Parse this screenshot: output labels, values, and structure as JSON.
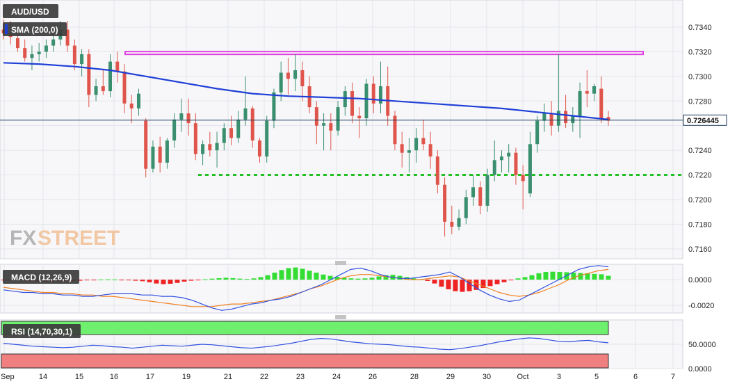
{
  "branding": {
    "logo_left": "FX",
    "logo_right": "STREET"
  },
  "price_panel": {
    "symbol_label": "AUD/USD",
    "sma_label": "SMA (200,0)",
    "current_price_label": "0.726445",
    "y_ticks": [
      "0.7340",
      "0.7320",
      "0.7300",
      "0.7280",
      "0.7260",
      "0.7240",
      "0.7220",
      "0.7200",
      "0.7180",
      "0.7160"
    ]
  },
  "macd_panel": {
    "label": "MACD (12,26,9)",
    "y_ticks": [
      "0.0000",
      "-0.0020"
    ]
  },
  "rsi_panel": {
    "label": "RSI (14,70,30,1)",
    "y_ticks": [
      "50.0000",
      "0.0000"
    ]
  },
  "x_ticks": [
    "Sep",
    "14",
    "15",
    "16",
    "17",
    "19",
    "21",
    "22",
    "23",
    "24",
    "26",
    "28",
    "29",
    "30",
    "Oct",
    "3",
    "5",
    "6",
    "7"
  ],
  "colors": {
    "bull": "#3a8f6e",
    "bear": "#e0554b",
    "sma": "#1f3fd6",
    "resistance": "#e040e0",
    "support": "#22c022",
    "macd_line": "#3050e0",
    "signal_line": "#f08020",
    "hist_pos": "#33dd33",
    "hist_neg": "#ee2222",
    "rsi_overbought": "#6ef06e",
    "rsi_oversold": "#f08080"
  },
  "chart_data": [
    {
      "type": "candlestick",
      "title": "AUD/USD",
      "ylim": [
        0.7152,
        0.7362
      ],
      "resistance": 0.7319,
      "support": 0.722,
      "current_price": 0.726445,
      "sma_200": [
        0.7311,
        0.731,
        0.7308,
        0.7305,
        0.73,
        0.7295,
        0.729,
        0.7286,
        0.7284,
        0.7283,
        0.7282,
        0.728,
        0.7278,
        0.7276,
        0.7274,
        0.7271,
        0.7268,
        0.7265
      ],
      "candles": [
        [
          0.7338,
          0.7346,
          0.733,
          0.7335
        ],
        [
          0.7335,
          0.7345,
          0.7326,
          0.7332
        ],
        [
          0.7331,
          0.7338,
          0.732,
          0.7323
        ],
        [
          0.7323,
          0.733,
          0.7312,
          0.7315
        ],
        [
          0.7315,
          0.7325,
          0.7305,
          0.7318
        ],
        [
          0.7318,
          0.7327,
          0.7312,
          0.732
        ],
        [
          0.732,
          0.733,
          0.7315,
          0.7325
        ],
        [
          0.7325,
          0.7336,
          0.732,
          0.733
        ],
        [
          0.733,
          0.7345,
          0.7325,
          0.7338
        ],
        [
          0.7338,
          0.7345,
          0.732,
          0.7325
        ],
        [
          0.7325,
          0.733,
          0.7305,
          0.731
        ],
        [
          0.731,
          0.7322,
          0.73,
          0.7318
        ],
        [
          0.7318,
          0.7322,
          0.7275,
          0.7285
        ],
        [
          0.7285,
          0.7298,
          0.728,
          0.7292
        ],
        [
          0.7292,
          0.7305,
          0.7285,
          0.7288
        ],
        [
          0.7288,
          0.7318,
          0.7283,
          0.7312
        ],
        [
          0.7312,
          0.732,
          0.7295,
          0.7304
        ],
        [
          0.7304,
          0.731,
          0.727,
          0.7278
        ],
        [
          0.7278,
          0.7285,
          0.7262,
          0.7274
        ],
        [
          0.7274,
          0.729,
          0.7268,
          0.7286
        ],
        [
          0.7264,
          0.7266,
          0.7218,
          0.7225
        ],
        [
          0.7225,
          0.7248,
          0.7222,
          0.7243
        ],
        [
          0.7243,
          0.7251,
          0.7222,
          0.723
        ],
        [
          0.723,
          0.725,
          0.7225,
          0.7248
        ],
        [
          0.7248,
          0.727,
          0.7242,
          0.7265
        ],
        [
          0.7265,
          0.7282,
          0.7255,
          0.727
        ],
        [
          0.727,
          0.7282,
          0.7252,
          0.7262
        ],
        [
          0.7262,
          0.727,
          0.7232,
          0.7237
        ],
        [
          0.7237,
          0.7248,
          0.7228,
          0.7245
        ],
        [
          0.7245,
          0.7255,
          0.7235,
          0.724
        ],
        [
          0.724,
          0.7255,
          0.7226,
          0.7246
        ],
        [
          0.7246,
          0.7262,
          0.724,
          0.7258
        ],
        [
          0.7258,
          0.7268,
          0.7244,
          0.725
        ],
        [
          0.725,
          0.7272,
          0.7246,
          0.7265
        ],
        [
          0.7265,
          0.73,
          0.726,
          0.7274
        ],
        [
          0.7274,
          0.7276,
          0.7242,
          0.7248
        ],
        [
          0.7248,
          0.725,
          0.723,
          0.7235
        ],
        [
          0.7235,
          0.7268,
          0.723,
          0.7264
        ],
        [
          0.7264,
          0.729,
          0.7258,
          0.7287
        ],
        [
          0.7287,
          0.7312,
          0.728,
          0.7303
        ],
        [
          0.7303,
          0.7315,
          0.7285,
          0.7298
        ],
        [
          0.7298,
          0.7318,
          0.7288,
          0.7305
        ],
        [
          0.7305,
          0.7312,
          0.728,
          0.7292
        ],
        [
          0.7292,
          0.73,
          0.727,
          0.7275
        ],
        [
          0.7275,
          0.728,
          0.7245,
          0.726
        ],
        [
          0.726,
          0.727,
          0.724,
          0.7262
        ],
        [
          0.7262,
          0.727,
          0.724,
          0.7256
        ],
        [
          0.7256,
          0.728,
          0.7252,
          0.7275
        ],
        [
          0.7275,
          0.7292,
          0.7268,
          0.7288
        ],
        [
          0.7288,
          0.7295,
          0.7262,
          0.7268
        ],
        [
          0.7268,
          0.7275,
          0.725,
          0.7266
        ],
        [
          0.7266,
          0.7298,
          0.726,
          0.7294
        ],
        [
          0.7294,
          0.73,
          0.727,
          0.7278
        ],
        [
          0.7278,
          0.7312,
          0.727,
          0.7292
        ],
        [
          0.7292,
          0.7308,
          0.726,
          0.7268
        ],
        [
          0.7268,
          0.7272,
          0.724,
          0.7245
        ],
        [
          0.7245,
          0.7255,
          0.7226,
          0.7238
        ],
        [
          0.7238,
          0.725,
          0.7222,
          0.724
        ],
        [
          0.724,
          0.7258,
          0.723,
          0.725
        ],
        [
          0.725,
          0.7265,
          0.724,
          0.7245
        ],
        [
          0.7245,
          0.7255,
          0.7225,
          0.7235
        ],
        [
          0.7235,
          0.724,
          0.7205,
          0.7212
        ],
        [
          0.7212,
          0.7218,
          0.717,
          0.7182
        ],
        [
          0.7182,
          0.7195,
          0.7172,
          0.7178
        ],
        [
          0.7178,
          0.7192,
          0.7175,
          0.7185
        ],
        [
          0.7185,
          0.7208,
          0.718,
          0.7202
        ],
        [
          0.7202,
          0.722,
          0.7195,
          0.721
        ],
        [
          0.721,
          0.7215,
          0.7188,
          0.7195
        ],
        [
          0.7195,
          0.7225,
          0.719,
          0.722
        ],
        [
          0.722,
          0.7248,
          0.7215,
          0.7232
        ],
        [
          0.7232,
          0.724,
          0.7222,
          0.7235
        ],
        [
          0.7235,
          0.7245,
          0.7222,
          0.7238
        ],
        [
          0.7238,
          0.7242,
          0.7212,
          0.722
        ],
        [
          0.722,
          0.7228,
          0.7192,
          0.7215
        ],
        [
          0.7205,
          0.7255,
          0.7202,
          0.7245
        ],
        [
          0.7245,
          0.7268,
          0.7238,
          0.7264
        ],
        [
          0.7264,
          0.7278,
          0.7255,
          0.727
        ],
        [
          0.727,
          0.728,
          0.7252,
          0.726
        ],
        [
          0.726,
          0.7318,
          0.7255,
          0.7272
        ],
        [
          0.7272,
          0.7285,
          0.7258,
          0.7262
        ],
        [
          0.7262,
          0.7275,
          0.7255,
          0.7268
        ],
        [
          0.7268,
          0.7295,
          0.725,
          0.7288
        ],
        [
          0.7288,
          0.7305,
          0.7275,
          0.7286
        ],
        [
          0.7286,
          0.7294,
          0.728,
          0.7292
        ],
        [
          0.729,
          0.73,
          0.7262,
          0.7266
        ],
        [
          0.7267,
          0.7272,
          0.726,
          0.7264
        ]
      ]
    },
    {
      "type": "bar",
      "title": "MACD (12,26,9)",
      "ylim": [
        -0.0026,
        0.0012
      ],
      "histogram": [
        -2e-05,
        -3e-05,
        -5e-05,
        -8e-05,
        -0.0001,
        -0.00012,
        -0.00015,
        -0.00018,
        -0.00015,
        -0.00012,
        -0.0001,
        -8e-05,
        -5e-05,
        -2e-05,
        1e-05,
        2e-05,
        1e-05,
        -2e-05,
        -5e-05,
        -8e-05,
        -0.00012,
        -0.0002,
        -0.0003,
        -0.00035,
        -0.00032,
        -0.00025,
        -0.00015,
        -8e-05,
        -2e-05,
        3e-05,
        8e-05,
        0.00012,
        0.00015,
        0.00012,
        8e-05,
        5e-05,
        0.0001,
        0.0002,
        0.00035,
        0.00055,
        0.00075,
        0.0009,
        0.00095,
        0.00085,
        0.0007,
        0.00055,
        0.0004,
        0.0003,
        0.00022,
        0.00015,
        0.0001,
        8e-05,
        0.0001,
        0.00015,
        0.00025,
        0.00035,
        0.00038,
        0.0003,
        0.0002,
        0.0001,
        2e-05,
        -0.0001,
        -0.0003,
        -0.00055,
        -0.00075,
        -0.0009,
        -0.00095,
        -0.0009,
        -0.0008,
        -0.00065,
        -0.0005,
        -0.00035,
        -0.0002,
        -5e-05,
        0.0001,
        0.0002,
        0.00035,
        0.0005,
        0.0006,
        0.00062,
        0.0006,
        0.00058,
        0.00055,
        0.00052,
        0.0005,
        0.00045,
        0.00042,
        0.0003
      ],
      "macd": [
        -0.0008,
        -0.0009,
        -0.001,
        -0.001,
        -0.0011,
        -0.0011,
        -0.0012,
        -0.0012,
        -0.0013,
        -0.0013,
        -0.0012,
        -0.0011,
        -0.0011,
        -0.0011,
        -0.0012,
        -0.0012,
        -0.0013,
        -0.0013,
        -0.0014,
        -0.0016,
        -0.0019,
        -0.0022,
        -0.0024,
        -0.0023,
        -0.0021,
        -0.0019,
        -0.0018,
        -0.0016,
        -0.0015,
        -0.0013,
        -0.001,
        -0.0007,
        -0.0004,
        0.0,
        0.0004,
        0.0008,
        0.0009,
        0.0007,
        0.0004,
        0.0002,
        0.0001,
        0.0001,
        0.0002,
        0.0003,
        0.0004,
        0.0006,
        0.0002,
        -0.0003,
        -0.0008,
        -0.0012,
        -0.0015,
        -0.0017,
        -0.0016,
        -0.0012,
        -0.0008,
        -0.0004,
        0.0,
        0.0004,
        0.0008,
        0.001,
        0.0011,
        0.001
      ],
      "signal": [
        -0.0006,
        -0.0007,
        -0.0008,
        -0.0009,
        -0.001,
        -0.001,
        -0.0011,
        -0.0011,
        -0.0012,
        -0.0012,
        -0.0013,
        -0.0013,
        -0.0014,
        -0.0015,
        -0.0016,
        -0.0017,
        -0.0018,
        -0.0019,
        -0.002,
        -0.0021,
        -0.0021,
        -0.0021,
        -0.002,
        -0.0019,
        -0.0019,
        -0.0018,
        -0.0017,
        -0.0016,
        -0.0014,
        -0.0012,
        -0.001,
        -0.0007,
        -0.0005,
        -0.0002,
        0.0001,
        0.0003,
        0.0004,
        0.0004,
        0.0003,
        0.0002,
        0.0001,
        0.0,
        0.0,
        0.0001,
        0.0002,
        0.0003,
        0.0002,
        -0.0001,
        -0.0004,
        -0.0007,
        -0.001,
        -0.0012,
        -0.0013,
        -0.0012,
        -0.001,
        -0.0007,
        -0.0004,
        0.0,
        0.0003,
        0.0005,
        0.0007,
        0.0008
      ]
    },
    {
      "type": "line",
      "title": "RSI (14,70,30,1)",
      "ylim": [
        0,
        100
      ],
      "overbought": 70,
      "oversold": 30,
      "values": [
        52,
        50,
        48,
        46,
        45,
        44,
        43,
        44,
        46,
        48,
        47,
        45,
        44,
        42,
        44,
        46,
        48,
        47,
        46,
        48,
        50,
        49,
        47,
        45,
        43,
        42,
        44,
        46,
        49,
        52,
        56,
        60,
        62,
        61,
        58,
        55,
        53,
        51,
        50,
        49,
        47,
        45,
        44,
        42,
        40,
        39,
        41,
        44,
        47,
        51,
        55,
        58,
        61,
        63,
        62,
        59,
        56,
        55,
        57,
        58,
        55,
        53
      ]
    }
  ]
}
